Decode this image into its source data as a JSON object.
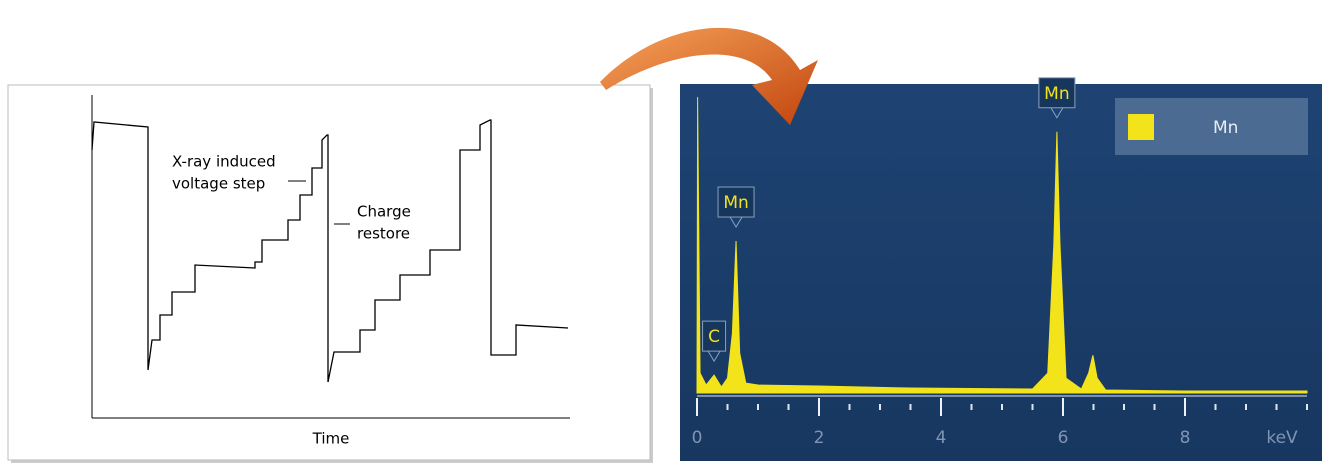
{
  "chart_data": [
    {
      "type": "line",
      "xlabel": "Time",
      "annotations": [
        {
          "lines": [
            "X-ray induced",
            "voltage step"
          ]
        },
        {
          "lines": [
            "Charge",
            "restore"
          ]
        }
      ],
      "x": [
        0,
        2,
        56,
        56,
        60,
        68,
        68,
        80,
        80,
        103,
        103,
        163,
        163,
        170,
        170,
        196,
        196,
        208,
        208,
        220,
        220,
        230,
        230,
        235,
        236,
        236,
        242,
        268,
        268,
        283,
        283,
        308,
        308,
        338,
        338,
        368,
        368,
        388,
        388,
        398,
        399,
        399,
        424,
        424,
        476
      ],
      "values": [
        268,
        296,
        291,
        48,
        78,
        78,
        103,
        103,
        126,
        126,
        153,
        150,
        156,
        156,
        178,
        178,
        198,
        198,
        223,
        223,
        250,
        250,
        278,
        283,
        283,
        36,
        66,
        66,
        88,
        88,
        118,
        118,
        143,
        143,
        168,
        168,
        268,
        268,
        293,
        298,
        298,
        63,
        63,
        93,
        90
      ],
      "color": "#000000",
      "xlim": [
        0,
        478
      ],
      "ylim": [
        0,
        323
      ]
    },
    {
      "type": "area",
      "xlabel": "keV",
      "x": [
        0,
        0.01,
        0.05,
        0.15,
        0.28,
        0.4,
        0.5,
        0.58,
        0.64,
        0.7,
        0.8,
        1.0,
        2,
        3.5,
        5.5,
        5.75,
        5.85,
        5.9,
        5.95,
        6.05,
        6.3,
        6.42,
        6.49,
        6.56,
        6.7,
        8,
        10
      ],
      "series": [
        {
          "name": "Mn",
          "color": "#f2e31b",
          "values": [
            0,
            298,
            20,
            8,
            18,
            6,
            15,
            60,
            153,
            40,
            10,
            8,
            7,
            5,
            4,
            20,
            150,
            263,
            150,
            15,
            4,
            20,
            38,
            15,
            3,
            2,
            2
          ]
        }
      ],
      "peak_labels": [
        {
          "text": "C",
          "x": 0.28
        },
        {
          "text": "Mn",
          "x": 0.64
        },
        {
          "text": "Mn",
          "x": 5.9
        }
      ],
      "xlim": [
        0,
        10
      ],
      "ylim": [
        0,
        300
      ],
      "xticks": [
        0,
        2,
        4,
        6,
        8
      ]
    }
  ]
}
